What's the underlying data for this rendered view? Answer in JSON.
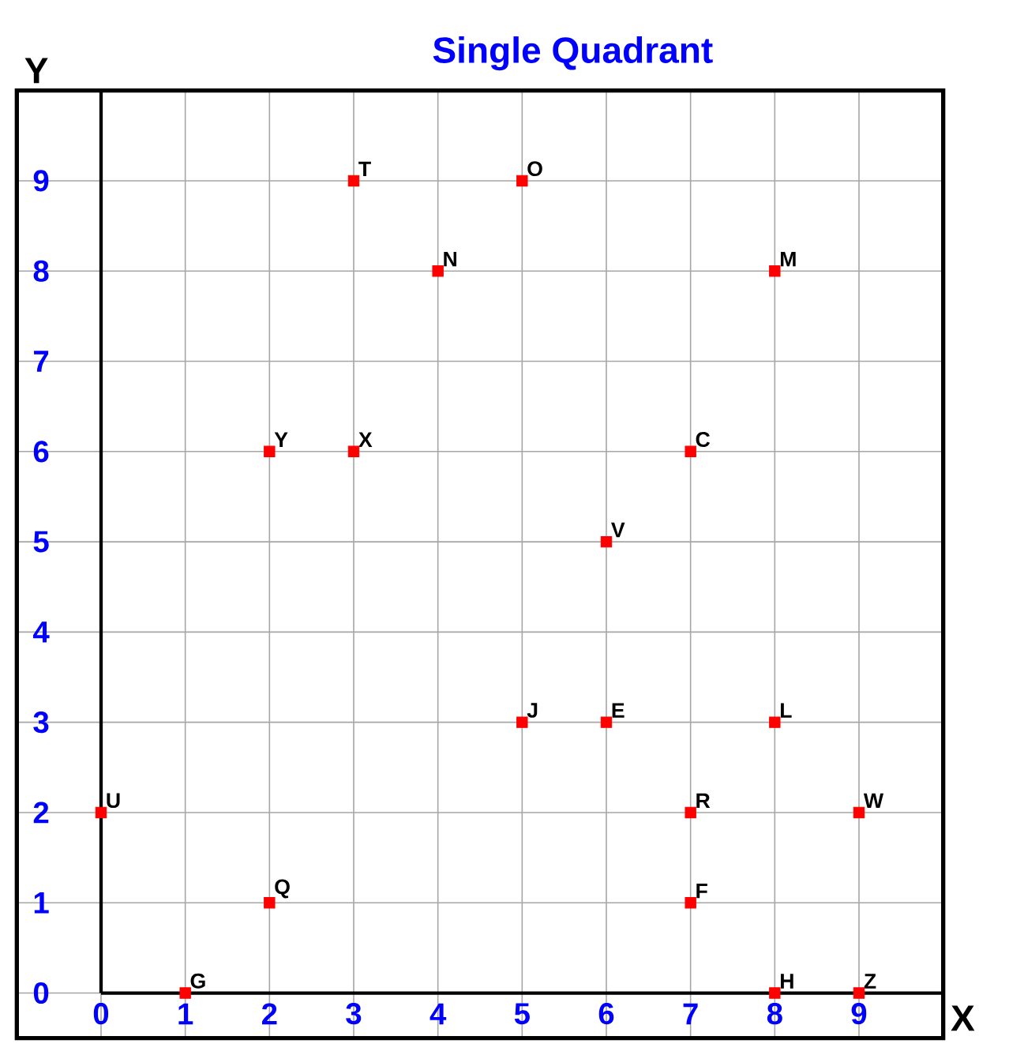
{
  "chart_data": {
    "type": "scatter",
    "title": "Single Quadrant",
    "xlabel": "X",
    "ylabel": "Y",
    "xlim": [
      -1,
      10
    ],
    "ylim": [
      -0.5,
      10
    ],
    "xticks": [
      0,
      1,
      2,
      3,
      4,
      5,
      6,
      7,
      8,
      9
    ],
    "yticks": [
      0,
      1,
      2,
      3,
      4,
      5,
      6,
      7,
      8,
      9
    ],
    "grid": true,
    "marker": "square",
    "series": [
      {
        "color": "#ff0000",
        "x": [
          3,
          5,
          4,
          8,
          2,
          3,
          7,
          6,
          5,
          6,
          8,
          0,
          7,
          9,
          2,
          7,
          1,
          8,
          9
        ],
        "values": [
          9,
          9,
          8,
          8,
          6,
          6,
          6,
          5,
          3,
          3,
          3,
          2,
          2,
          2,
          1,
          1,
          0,
          0,
          0
        ]
      }
    ],
    "annotations": [
      {
        "text": "T",
        "x": 3,
        "y": 9
      },
      {
        "text": "O",
        "x": 5,
        "y": 9
      },
      {
        "text": "N",
        "x": 4,
        "y": 8
      },
      {
        "text": "M",
        "x": 8,
        "y": 8
      },
      {
        "text": "Y",
        "x": 2,
        "y": 6
      },
      {
        "text": "X",
        "x": 3,
        "y": 6
      },
      {
        "text": "C",
        "x": 7,
        "y": 6
      },
      {
        "text": "V",
        "x": 6,
        "y": 5
      },
      {
        "text": "J",
        "x": 5,
        "y": 3
      },
      {
        "text": "E",
        "x": 6,
        "y": 3
      },
      {
        "text": "L",
        "x": 8,
        "y": 3
      },
      {
        "text": "U",
        "x": 0,
        "y": 2
      },
      {
        "text": "R",
        "x": 7,
        "y": 2
      },
      {
        "text": "W",
        "x": 9,
        "y": 2
      },
      {
        "text": "Q",
        "x": 2,
        "y": 1
      },
      {
        "text": "F",
        "x": 7,
        "y": 1
      },
      {
        "text": "G",
        "x": 1,
        "y": 0
      },
      {
        "text": "H",
        "x": 8,
        "y": 0
      },
      {
        "text": "Z",
        "x": 9,
        "y": 0
      }
    ]
  }
}
